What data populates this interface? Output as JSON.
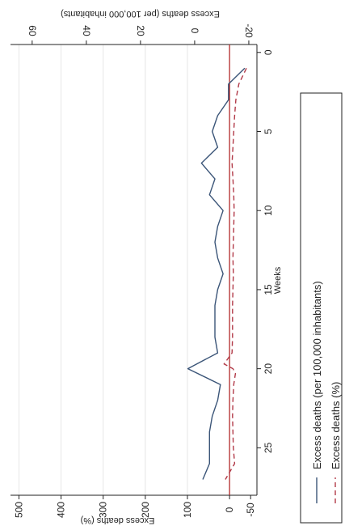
{
  "chart_data": {
    "type": "line",
    "orientation": "rotated-90-counterclockwise",
    "x_axis": {
      "label": "Weeks",
      "ticks": [
        0,
        5,
        10,
        15,
        20,
        25
      ],
      "range": [
        -0.5,
        28
      ]
    },
    "y_left": {
      "label": "Excess deaths (%)",
      "ticks": [
        500,
        400,
        300,
        200,
        100,
        0,
        -50
      ],
      "range": [
        -65,
        520
      ]
    },
    "y_right": {
      "label": "Excess deaths (per 100,000 inhabitants)",
      "ticks": [
        60,
        40,
        20,
        0,
        -20
      ],
      "range": [
        -23,
        68
      ]
    },
    "reference_line": {
      "axis": "y_left",
      "value": 0,
      "color": "#b22b2b"
    },
    "grid": "horizontal-at-major-ticks",
    "legend": {
      "placement": "bottom",
      "entries": [
        {
          "label": "Excess deaths (per 100,000 inhabitants)",
          "style": "solid",
          "color": "#3b5578"
        },
        {
          "label": "Excess deaths (%)",
          "style": "dashed",
          "color": "#b23a48"
        }
      ]
    },
    "series": [
      {
        "name": "Excess deaths (per 100,000 inhabitants)",
        "axis": "y_right",
        "x": [
          1,
          2,
          3,
          4,
          5,
          6,
          7,
          8,
          9,
          10,
          11,
          12,
          13,
          14,
          15,
          16,
          17,
          18,
          19,
          20,
          21,
          22,
          23,
          24,
          25,
          26,
          27
        ],
        "values": [
          -18.5,
          -12.5,
          -12.5,
          -8.5,
          -6.5,
          -8.5,
          -2.5,
          -7.5,
          -5.5,
          -10.5,
          -8.5,
          -7.5,
          -8.5,
          -10.5,
          -8.5,
          -7.5,
          -7.5,
          -7.5,
          -8.5,
          2.5,
          -9.5,
          -8.5,
          -6.5,
          -5.5,
          -5.5,
          -5.5,
          -3
        ]
      },
      {
        "name": "Excess deaths (%)",
        "axis": "y_left",
        "x": [
          1,
          2,
          3,
          4,
          5,
          6,
          7,
          8,
          9,
          10,
          11,
          12,
          13,
          14,
          15,
          16,
          17,
          18,
          19,
          19.7,
          20,
          20.3,
          21,
          22,
          23,
          24,
          25,
          26,
          27
        ],
        "values": [
          -40,
          -22,
          -15,
          -12,
          -10,
          -8,
          -6,
          -8,
          -10,
          -11,
          -10,
          -9,
          -8,
          -9,
          -8,
          -7,
          -7,
          -7,
          -6,
          13,
          -8,
          -14,
          -10,
          -8,
          -7,
          -8,
          -9,
          -12,
          10
        ]
      }
    ]
  }
}
